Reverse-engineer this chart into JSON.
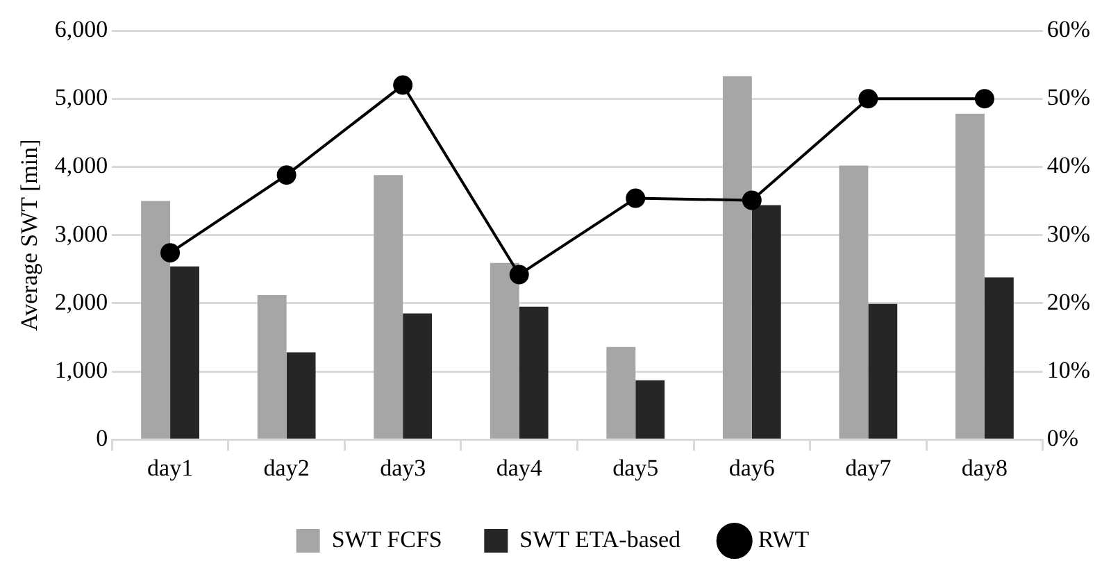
{
  "chart_data": {
    "type": "bar",
    "ylabel": "Average SWT [min]",
    "categories": [
      "day1",
      "day2",
      "day3",
      "day4",
      "day5",
      "day6",
      "day7",
      "day8"
    ],
    "series": [
      {
        "name": "SWT FCFS",
        "color": "#a6a6a6",
        "values": [
          3500,
          2120,
          3880,
          2590,
          1360,
          5330,
          4020,
          4780
        ]
      },
      {
        "name": "SWT ETA-based",
        "color": "#262626",
        "values": [
          2540,
          1280,
          1850,
          1950,
          870,
          3440,
          1990,
          2380
        ]
      },
      {
        "name": "RWT",
        "type": "line",
        "axis": "y2",
        "color": "#000000",
        "marker": "circle",
        "values": [
          27.4,
          38.8,
          52,
          24.2,
          35.4,
          35.1,
          50,
          50
        ]
      }
    ],
    "ylim": [
      0,
      6000
    ],
    "yticks": [
      {
        "value": 0,
        "label": "0"
      },
      {
        "value": 1000,
        "label": "1,000"
      },
      {
        "value": 2000,
        "label": "2,000"
      },
      {
        "value": 3000,
        "label": "3,000"
      },
      {
        "value": 4000,
        "label": "4,000"
      },
      {
        "value": 5000,
        "label": "5,000"
      },
      {
        "value": 6000,
        "label": "6,000"
      }
    ],
    "y2lim": [
      0,
      60
    ],
    "y2ticks": [
      {
        "value": 0,
        "label": "0%"
      },
      {
        "value": 10,
        "label": "10%"
      },
      {
        "value": 20,
        "label": "20%"
      },
      {
        "value": 30,
        "label": "30%"
      },
      {
        "value": 40,
        "label": "40%"
      },
      {
        "value": 50,
        "label": "50%"
      },
      {
        "value": 60,
        "label": "60%"
      }
    ],
    "grid": "y",
    "legend": "bottom"
  }
}
